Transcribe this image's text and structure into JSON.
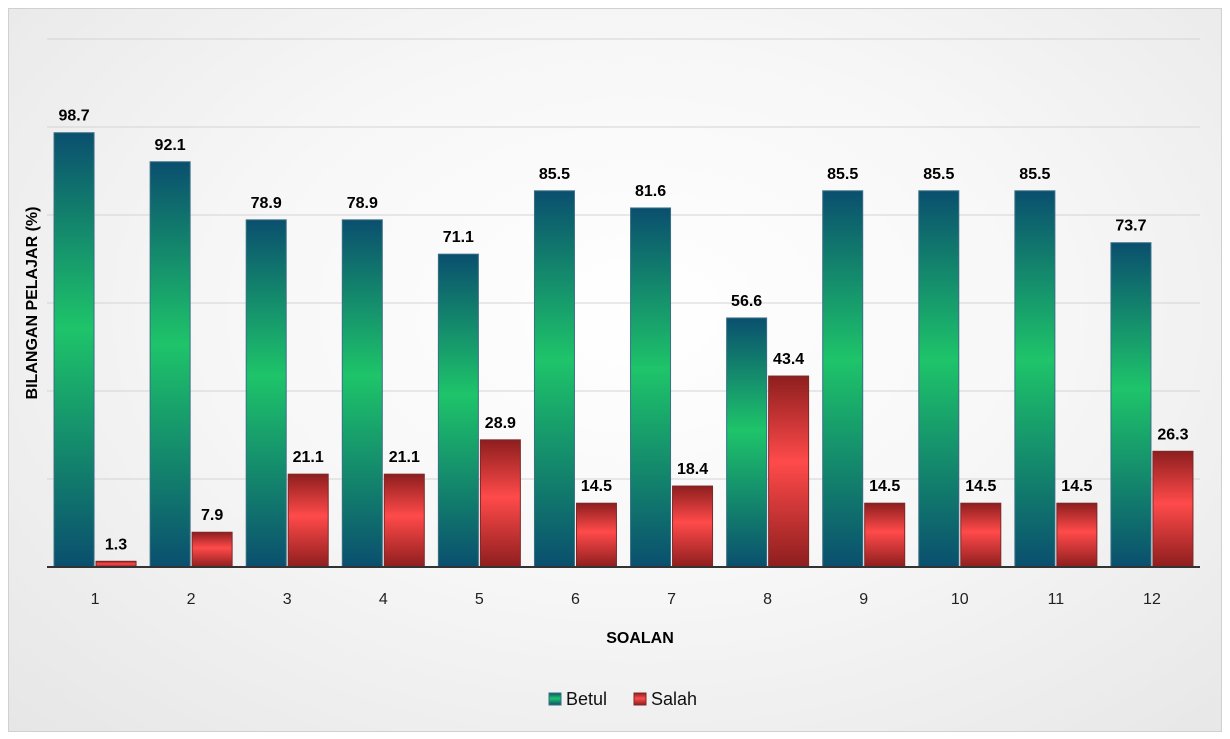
{
  "chart_data": {
    "type": "bar",
    "title": "",
    "xlabel": "SOALAN",
    "ylabel": "BILANGAN PELAJAR (%)",
    "categories": [
      "1",
      "2",
      "3",
      "4",
      "5",
      "6",
      "7",
      "8",
      "9",
      "10",
      "11",
      "12"
    ],
    "series": [
      {
        "name": "Betul",
        "values": [
          98.7,
          92.1,
          78.9,
          78.9,
          71.1,
          85.5,
          81.6,
          56.6,
          85.5,
          85.5,
          85.5,
          73.7
        ]
      },
      {
        "name": "Salah",
        "values": [
          1.3,
          7.9,
          21.1,
          21.1,
          28.9,
          14.5,
          18.4,
          43.4,
          14.5,
          14.5,
          14.5,
          26.3
        ]
      }
    ],
    "ylim": [
      0,
      120
    ],
    "grid": true,
    "legend": "bottom",
    "colors": {
      "Betul": "#1ec46a",
      "Betul_dark": "#0a4f6e",
      "Salah": "#ff4a4a",
      "Salah_dark": "#8e1e1e"
    }
  }
}
